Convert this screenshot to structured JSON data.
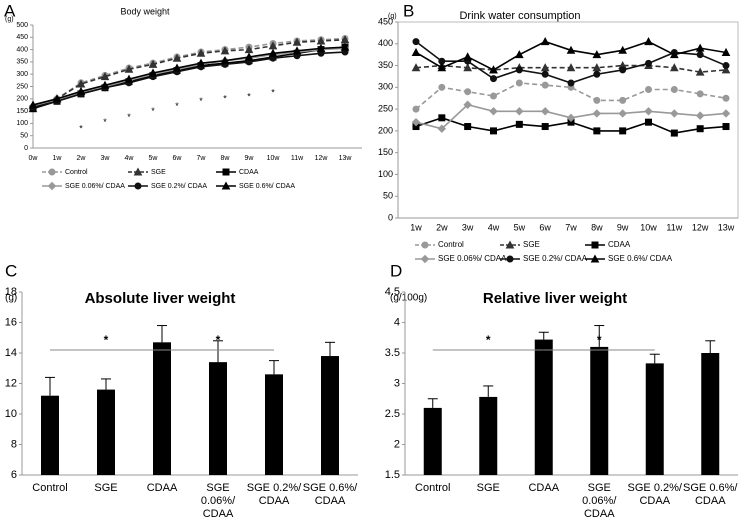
{
  "chart_data": [
    {
      "type": "line",
      "panel": "A",
      "title": "Body weight",
      "ylabel": "(g)",
      "categories": [
        "0w",
        "1w",
        "2w",
        "3w",
        "4w",
        "5w",
        "6w",
        "7w",
        "8w",
        "9w",
        "10w",
        "11w",
        "12w",
        "13w"
      ],
      "ylim": [
        0,
        500
      ],
      "yticks": [
        0,
        50,
        100,
        150,
        200,
        250,
        300,
        350,
        400,
        450,
        500
      ],
      "series": [
        {
          "name": "Control",
          "color": "#999999",
          "dash": true,
          "marker": "circle",
          "values": [
            165,
            200,
            265,
            295,
            325,
            345,
            370,
            390,
            400,
            410,
            425,
            435,
            440,
            445
          ]
        },
        {
          "name": "SGE",
          "color": "#333333",
          "dash": true,
          "marker": "triangle",
          "values": [
            160,
            200,
            260,
            290,
            320,
            340,
            365,
            385,
            395,
            400,
            415,
            430,
            435,
            440
          ]
        },
        {
          "name": "CDAA",
          "color": "#000000",
          "dash": false,
          "marker": "square",
          "values": [
            160,
            190,
            220,
            245,
            270,
            295,
            315,
            335,
            345,
            355,
            370,
            385,
            400,
            410
          ]
        },
        {
          "name": "SGE 0.06%/ CDAA",
          "color": "#999999",
          "dash": false,
          "marker": "diamond",
          "values": [
            170,
            195,
            225,
            250,
            275,
            300,
            320,
            340,
            355,
            365,
            380,
            390,
            400,
            405
          ]
        },
        {
          "name": "SGE 0.2%/ CDAA",
          "color": "#111111",
          "dash": false,
          "marker": "circle",
          "values": [
            165,
            190,
            220,
            245,
            265,
            290,
            310,
            330,
            340,
            350,
            365,
            375,
            385,
            390
          ]
        },
        {
          "name": "SGE 0.6%/ CDAA",
          "color": "#000000",
          "dash": false,
          "marker": "triangle",
          "values": [
            175,
            200,
            230,
            255,
            280,
            305,
            325,
            345,
            355,
            370,
            385,
            395,
            405,
            410
          ]
        }
      ],
      "annotations": [
        {
          "x": "2w",
          "text": "*"
        },
        {
          "x": "3w",
          "text": "*"
        },
        {
          "x": "4w",
          "text": "*"
        },
        {
          "x": "5w",
          "text": "*"
        },
        {
          "x": "6w",
          "text": "*"
        },
        {
          "x": "7w",
          "text": "*"
        },
        {
          "x": "8w",
          "text": "*"
        },
        {
          "x": "9w",
          "text": "*"
        },
        {
          "x": "10w",
          "text": "*"
        }
      ]
    },
    {
      "type": "line",
      "panel": "B",
      "title": "Drink water consumption",
      "ylabel": "(g)",
      "categories": [
        "1w",
        "2w",
        "3w",
        "4w",
        "5w",
        "6w",
        "7w",
        "8w",
        "9w",
        "10w",
        "11w",
        "12w",
        "13w"
      ],
      "ylim": [
        0,
        450
      ],
      "yticks": [
        0,
        50,
        100,
        150,
        200,
        250,
        300,
        350,
        400,
        450
      ],
      "box": true,
      "series": [
        {
          "name": "Control",
          "color": "#999999",
          "dash": true,
          "marker": "circle",
          "values": [
            250,
            300,
            290,
            280,
            310,
            305,
            300,
            270,
            270,
            295,
            295,
            285,
            275
          ]
        },
        {
          "name": "SGE",
          "color": "#333333",
          "dash": true,
          "marker": "triangle",
          "values": [
            345,
            350,
            345,
            340,
            345,
            345,
            345,
            345,
            350,
            350,
            345,
            335,
            340
          ]
        },
        {
          "name": "CDAA",
          "color": "#000000",
          "dash": false,
          "marker": "square",
          "values": [
            210,
            230,
            210,
            200,
            215,
            210,
            220,
            200,
            200,
            220,
            195,
            205,
            210
          ]
        },
        {
          "name": "SGE 0.06%/ CDAA",
          "color": "#999999",
          "dash": false,
          "marker": "diamond",
          "values": [
            220,
            205,
            260,
            245,
            245,
            245,
            230,
            240,
            240,
            245,
            240,
            235,
            240
          ]
        },
        {
          "name": "SGE 0.2%/ CDAA",
          "color": "#111111",
          "dash": false,
          "marker": "circle",
          "values": [
            405,
            360,
            360,
            320,
            340,
            330,
            310,
            330,
            340,
            355,
            380,
            375,
            350
          ]
        },
        {
          "name": "SGE 0.6%/ CDAA",
          "color": "#000000",
          "dash": false,
          "marker": "triangle",
          "values": [
            380,
            345,
            370,
            340,
            375,
            405,
            385,
            375,
            385,
            405,
            375,
            390,
            380
          ]
        }
      ]
    },
    {
      "type": "bar",
      "panel": "C",
      "title": "Absolute liver weight",
      "ylabel": "(g)",
      "categories": [
        "Control",
        "SGE",
        "CDAA",
        "SGE\n0.06%/\nCDAA",
        "SGE 0.2%/\nCDAA",
        "SGE 0.6%/\nCDAA"
      ],
      "values": [
        11.2,
        11.6,
        14.7,
        13.4,
        12.6,
        13.8
      ],
      "errors": [
        1.2,
        0.7,
        1.1,
        1.4,
        0.9,
        0.9
      ],
      "color": "#000000",
      "ylim": [
        6,
        18
      ],
      "yticks": [
        6,
        8,
        10,
        12,
        14,
        16,
        18
      ],
      "comparisons": [
        {
          "from": 0,
          "to": 2,
          "label": "*"
        },
        {
          "from": 2,
          "to": 4,
          "label": "*"
        }
      ]
    },
    {
      "type": "bar",
      "panel": "D",
      "title": "Relative liver weight",
      "ylabel": "(g/100g)",
      "categories": [
        "Control",
        "SGE",
        "CDAA",
        "SGE\n0.06%/\nCDAA",
        "SGE 0.2%/\nCDAA",
        "SGE 0.6%/\nCDAA"
      ],
      "values": [
        2.6,
        2.78,
        3.72,
        3.6,
        3.33,
        3.5
      ],
      "errors": [
        0.15,
        0.18,
        0.12,
        0.35,
        0.15,
        0.2
      ],
      "color": "#000000",
      "ylim": [
        1.5,
        4.5
      ],
      "yticks": [
        1.5,
        2,
        2.5,
        3,
        3.5,
        4,
        4.5
      ],
      "comparisons": [
        {
          "from": 0,
          "to": 2,
          "label": "*"
        },
        {
          "from": 2,
          "to": 4,
          "label": "*"
        }
      ]
    }
  ]
}
